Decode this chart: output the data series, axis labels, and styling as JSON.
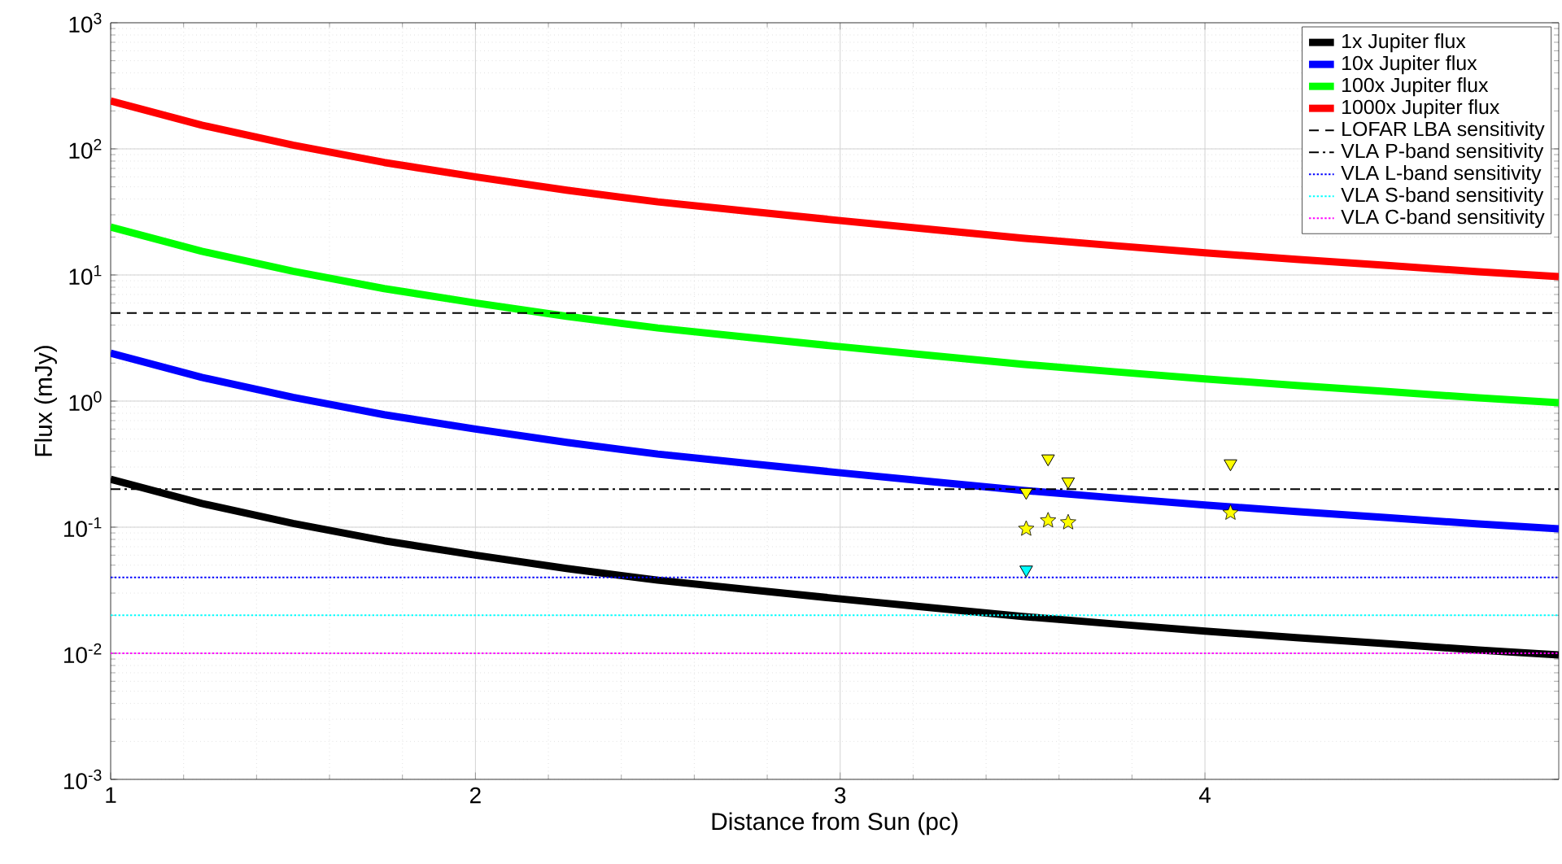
{
  "chart_data": {
    "type": "line",
    "xlabel": "Distance from Sun (pc)",
    "ylabel": "Flux (mJy)",
    "log": "y",
    "grid": true,
    "legend": "top right",
    "marker": "none",
    "line_style": "solid",
    "xlim": [
      1,
      4.97
    ],
    "xticks": [
      1,
      2,
      3,
      4
    ],
    "ylim": [
      0.001,
      1000
    ],
    "yticks": [
      {
        "value": 0.001,
        "label": "10$^{-3}$"
      },
      {
        "value": 0.01,
        "label": "10$^{-2}$"
      },
      {
        "value": 0.1,
        "label": "10$^{-1}$"
      },
      {
        "value": 1,
        "label": "10$^{0}$"
      },
      {
        "value": 10,
        "label": "10$^{1}$"
      },
      {
        "value": 100,
        "label": "10$^{2}$"
      },
      {
        "value": 1000,
        "label": "10$^{3}$"
      }
    ],
    "x": [
      1,
      1.25,
      1.5,
      1.75,
      2,
      2.25,
      2.5,
      2.75,
      3,
      3.25,
      3.5,
      3.75,
      4,
      4.25,
      4.5,
      4.75,
      4.97
    ],
    "series": [
      {
        "name": "1x Jupiter flux",
        "color": "#000000",
        "values": [
          0.24,
          0.154,
          0.107,
          0.078,
          0.06,
          0.047,
          0.038,
          0.032,
          0.027,
          0.023,
          0.0196,
          0.0171,
          0.015,
          0.0133,
          0.0119,
          0.0106,
          0.0097
        ]
      },
      {
        "name": "10x Jupiter flux",
        "color": "#0000ff",
        "values": [
          2.4,
          1.54,
          1.07,
          0.78,
          0.6,
          0.47,
          0.38,
          0.32,
          0.27,
          0.23,
          0.196,
          0.171,
          0.15,
          0.133,
          0.119,
          0.106,
          0.097
        ]
      },
      {
        "name": "100x Jupiter flux",
        "color": "#00ff00",
        "values": [
          24,
          15.4,
          10.7,
          7.8,
          6,
          4.7,
          3.8,
          3.2,
          2.7,
          2.3,
          1.96,
          1.71,
          1.5,
          1.33,
          1.19,
          1.06,
          0.97
        ]
      },
      {
        "name": "1000x Jupiter flux",
        "color": "#ff0000",
        "values": [
          240,
          154,
          107,
          78,
          60,
          47,
          38,
          32,
          27,
          23,
          19.6,
          17.1,
          15,
          13.3,
          11.9,
          10.6,
          9.7
        ]
      },
      {
        "type": "scatter",
        "marker": "triangle_down",
        "color": "#ffff00",
        "x": [
          3.51,
          3.57,
          3.625,
          4.07
        ],
        "values": [
          0.19,
          0.35,
          0.23,
          0.32
        ]
      },
      {
        "type": "scatter",
        "marker": "star",
        "color": "#ffff00",
        "x": [
          3.51,
          3.57,
          3.625,
          4.07
        ],
        "values": [
          0.097,
          0.113,
          0.109,
          0.13
        ]
      },
      {
        "type": "scatter",
        "marker": "triangle_down",
        "color": "#00ffff",
        "x": [
          3.51
        ],
        "values": [
          0.046
        ]
      }
    ],
    "ref_lines": [
      {
        "axis": "y",
        "value": 5,
        "label": "LOFAR LBA sensitivity",
        "color": "#000000",
        "line_style": "dashed"
      },
      {
        "axis": "y",
        "value": 0.2,
        "label": "VLA P-band sensitivity",
        "color": "#000000",
        "line_style": "dashdot"
      },
      {
        "axis": "y",
        "value": 0.04,
        "label": "VLA L-band sensitivity",
        "color": "#0000ff",
        "line_style": "dotted"
      },
      {
        "axis": "y",
        "value": 0.02,
        "label": "VLA S-band sensitivity",
        "color": "#00ffff",
        "line_style": "dotted"
      },
      {
        "axis": "y",
        "value": 0.01,
        "label": "VLA C-band sensitivity",
        "color": "#ff00ff",
        "line_style": "dotted"
      }
    ]
  }
}
